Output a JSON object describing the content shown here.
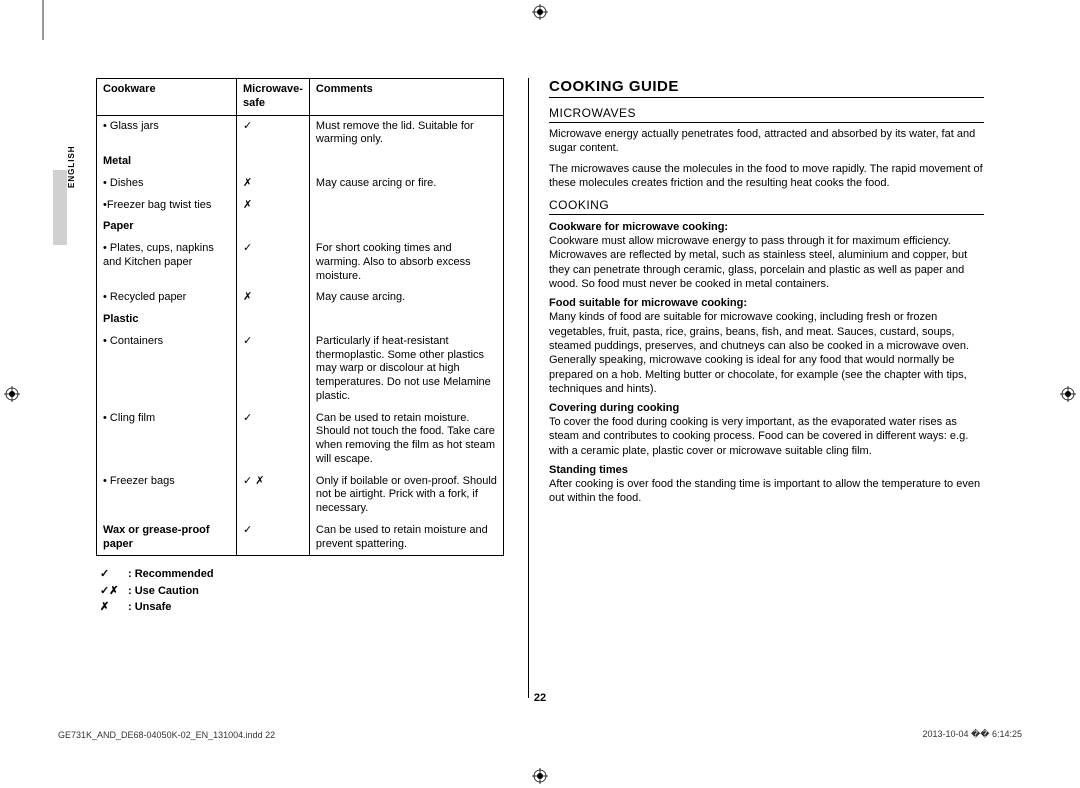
{
  "language_tab": "ENGLISH",
  "table": {
    "headers": [
      "Cookware",
      "Microwave-safe",
      "Comments"
    ],
    "rows": [
      {
        "type": "item",
        "cells": [
          "• Glass jars",
          "✓",
          "Must remove the lid. Suitable for warming only."
        ]
      },
      {
        "type": "section",
        "label": "Metal"
      },
      {
        "type": "item",
        "cells": [
          "• Dishes",
          "✗",
          "May cause arcing or fire."
        ]
      },
      {
        "type": "item",
        "cells": [
          "•Freezer bag twist ties",
          "✗",
          ""
        ]
      },
      {
        "type": "section",
        "label": "Paper"
      },
      {
        "type": "item",
        "cells": [
          "• Plates, cups, napkins and Kitchen paper",
          "✓",
          "For short cooking times and warming. Also to absorb excess moisture."
        ]
      },
      {
        "type": "item",
        "cells": [
          "• Recycled paper",
          "✗",
          "May cause arcing."
        ]
      },
      {
        "type": "section",
        "label": "Plastic"
      },
      {
        "type": "item",
        "cells": [
          "• Containers",
          "✓",
          "Particularly if heat-resistant thermoplastic. Some other plastics may warp or discolour at high temperatures. Do not use Melamine plastic."
        ]
      },
      {
        "type": "item",
        "cells": [
          "• Cling film",
          "✓",
          "Can be used to retain moisture. Should not touch the food. Take care when removing the film as hot steam will escape."
        ]
      },
      {
        "type": "item",
        "cells": [
          "• Freezer bags",
          "✓ ✗",
          "Only if boilable or oven-proof. Should not be airtight. Prick with a fork, if necessary."
        ]
      },
      {
        "type": "item",
        "last": true,
        "cells": [
          "Wax or grease-proof paper",
          "✓",
          "Can be used to retain moisture and prevent spattering."
        ],
        "boldFirst": true
      }
    ]
  },
  "legend": [
    {
      "sym": "✓",
      "text": ": Recommended"
    },
    {
      "sym": "✓✗",
      "text": ": Use Caution"
    },
    {
      "sym": "✗",
      "text": ": Unsafe"
    }
  ],
  "right": {
    "title": "COOKING GUIDE",
    "sec1": {
      "heading": "MICROWAVES",
      "p1": "Microwave energy actually penetrates food, attracted and absorbed by its water, fat and sugar content.",
      "p2": "The microwaves cause the molecules in the food to move rapidly. The rapid movement of these molecules creates friction and the resulting heat cooks the food."
    },
    "sec2": {
      "heading": "COOKING",
      "sub1": "Cookware for microwave cooking:",
      "p1": "Cookware must allow microwave energy to pass through it for maximum efficiency. Microwaves are reflected by metal, such as stainless steel, aluminium and copper, but they can penetrate through ceramic, glass, porcelain and plastic as well as paper and wood. So food must never be cooked in metal containers.",
      "sub2": "Food suitable for microwave cooking:",
      "p2": "Many kinds of food are suitable for microwave cooking, including fresh or frozen vegetables, fruit, pasta, rice, grains, beans, fish, and meat. Sauces, custard, soups, steamed puddings, preserves, and chutneys can also be cooked in a microwave oven. Generally speaking, microwave cooking is ideal for any food that would normally be prepared on a hob. Melting butter or chocolate, for example (see the chapter with tips, techniques and hints).",
      "sub3": "Covering during cooking",
      "p3": "To cover the food during cooking is very important, as the evaporated water rises as steam and contributes to cooking process. Food can be covered in different ways: e.g. with a ceramic plate, plastic cover or microwave suitable cling film.",
      "sub4": "Standing times",
      "p4": "After cooking is over food the standing time is important to allow the temperature to even out within the food."
    }
  },
  "page_number": "22",
  "footer_left": "GE731K_AND_DE68-04050K-02_EN_131004.indd   22",
  "footer_right": "2013-10-04   �� 6:14:25"
}
